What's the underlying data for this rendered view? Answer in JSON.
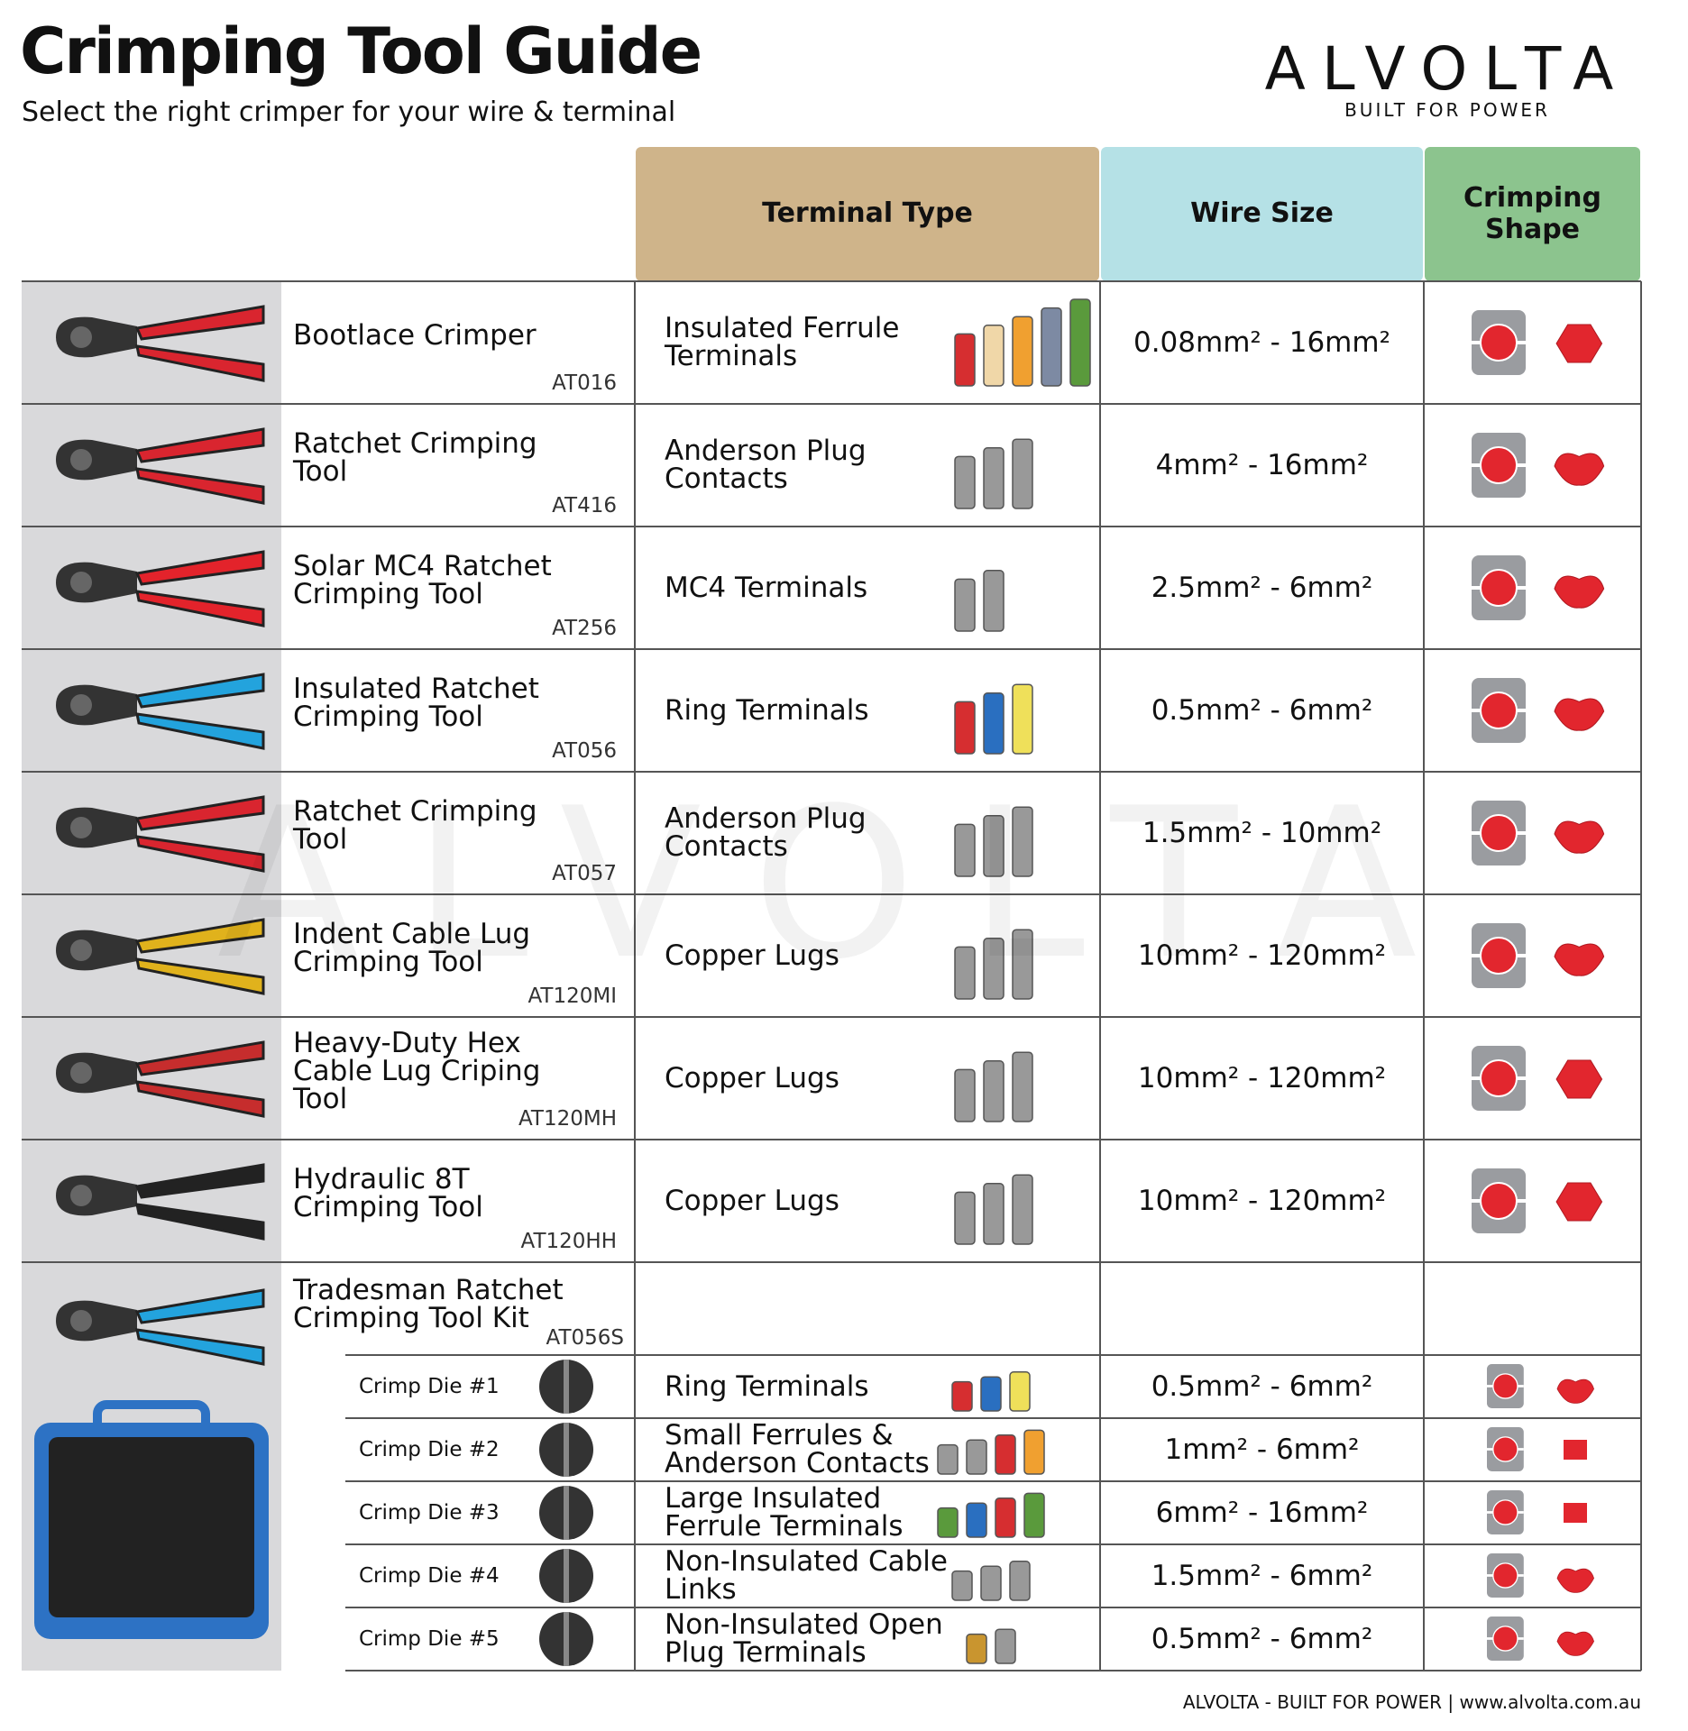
{
  "header": {
    "title": "Crimping Tool Guide",
    "subtitle": "Select the right crimper for your wire & terminal"
  },
  "logo": {
    "brand": "ALVOLTA",
    "tagline": "BUILT FOR POWER"
  },
  "table": {
    "columns": [
      "Terminal Type",
      "Wire Size",
      "Crimping Shape"
    ],
    "rows": [
      {
        "tool": "Bootlace Crimper",
        "code": "AT016",
        "terminal": "Insulated Ferrule Terminals",
        "wire": "0.08mm² - 16mm²"
      },
      {
        "tool": "Ratchet Crimping Tool",
        "code": "AT416",
        "terminal": "Anderson Plug Contacts",
        "wire": "4mm² - 16mm²"
      },
      {
        "tool": "Solar MC4 Ratchet Crimping Tool",
        "code": "AT256",
        "terminal": "MC4 Terminals",
        "wire": "2.5mm² - 6mm²"
      },
      {
        "tool": "Insulated Ratchet Crimping Tool",
        "code": "AT056",
        "terminal": "Ring Terminals",
        "wire": "0.5mm² - 6mm²"
      },
      {
        "tool": "Ratchet Crimping Tool",
        "code": "AT057",
        "terminal": "Anderson Plug Contacts",
        "wire": "1.5mm² - 10mm²"
      },
      {
        "tool": "Indent Cable Lug Crimping Tool",
        "code": "AT120MI",
        "terminal": "Copper Lugs",
        "wire": "10mm² - 120mm²"
      },
      {
        "tool": "Heavy-Duty Hex Cable Lug Criping Tool",
        "code": "AT120MH",
        "terminal": "Copper Lugs",
        "wire": "10mm² - 120mm²"
      },
      {
        "tool": "Hydraulic 8T Crimping Tool",
        "code": "AT120HH",
        "terminal": "Copper Lugs",
        "wire": "10mm² - 120mm²"
      }
    ],
    "kit": {
      "tool": "Tradesman Ratchet Crimping Tool Kit",
      "code": "AT056S",
      "dies": [
        {
          "die": "Crimp Die #1",
          "terminal": "Ring Terminals",
          "wire": "0.5mm² - 6mm²"
        },
        {
          "die": "Crimp Die #2",
          "terminal": "Small Ferrules & Anderson Contacts",
          "wire": "1mm² - 6mm²"
        },
        {
          "die": "Crimp Die #3",
          "terminal": "Large Insulated Ferrule Terminals",
          "wire": "6mm² - 16mm²"
        },
        {
          "die": "Crimp Die #4",
          "terminal": "Non-Insulated Cable Links",
          "wire": "1.5mm² - 6mm²"
        },
        {
          "die": "Crimp Die #5",
          "terminal": "Non-Insulated Open Plug Terminals",
          "wire": "0.5mm² - 6mm²"
        }
      ]
    }
  },
  "footer": "ALVOLTA - BUILT FOR POWER | www.alvolta.com.au"
}
